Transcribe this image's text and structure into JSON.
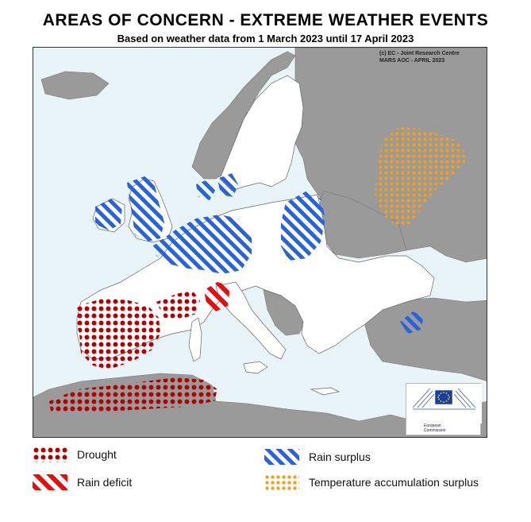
{
  "title": "AREAS OF CONCERN - EXTREME WEATHER EVENTS",
  "subtitle": "Based on weather data from 1 March 2023 until 17 April 2023",
  "credit": {
    "line1": "(c) EC - Joint Research Centre",
    "line2": "MARS AOC - APRIL 2023"
  },
  "logo": {
    "line1": "European",
    "line2": "Commission"
  },
  "colors": {
    "sea": "#e8f4f8",
    "eu_land": "#ffffff",
    "non_eu_land": "#9a9a9a",
    "drought": "#b30000",
    "rain_deficit": "#e01010",
    "rain_surplus": "#2a63d6",
    "temperature_surplus": "#f0a020"
  },
  "legend": [
    {
      "id": "drought",
      "label": "Drought",
      "pattern": "dots",
      "color": "#b30000"
    },
    {
      "id": "rain-surplus",
      "label": "Rain surplus",
      "pattern": "hatch",
      "color": "#2a63d6"
    },
    {
      "id": "rain-deficit",
      "label": "Rain deficit",
      "pattern": "hatch",
      "color": "#e01010"
    },
    {
      "id": "temperature-accumulation-surplus",
      "label": "Temperature accumulation surplus",
      "pattern": "small-dots",
      "color": "#f0a020"
    }
  ]
}
